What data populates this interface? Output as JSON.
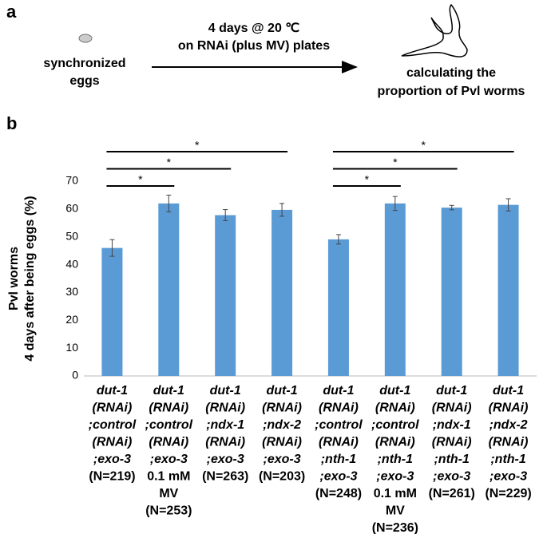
{
  "panel_a": {
    "label": "a",
    "start_text": [
      "synchronized",
      "eggs"
    ],
    "arrow_text": [
      "4 days @ 20 ℃",
      "on RNAi (plus MV) plates"
    ],
    "end_text": [
      "calculating the",
      "proportion of Pvl worms"
    ]
  },
  "panel_b": {
    "label": "b"
  },
  "chart_data": {
    "type": "bar",
    "y_label": [
      "Pvl worms",
      "4 days after being eggs (%)"
    ],
    "categories": [
      {
        "genotype": [
          "dut-1",
          "(RNAi)",
          ";control",
          "(RNAi)",
          ";exo-3"
        ],
        "n": "(N=219)"
      },
      {
        "genotype": [
          "dut-1",
          "(RNAi)",
          ";control",
          "(RNAi)",
          ";exo-3"
        ],
        "treatment": [
          "0.1 mM",
          "MV"
        ],
        "n": "(N=253)"
      },
      {
        "genotype": [
          "dut-1",
          "(RNAi)",
          ";ndx-1",
          "(RNAi)",
          ";exo-3"
        ],
        "n": "(N=263)"
      },
      {
        "genotype": [
          "dut-1",
          "(RNAi)",
          ";ndx-2",
          "(RNAi)",
          ";exo-3"
        ],
        "n": "(N=203)"
      },
      {
        "genotype": [
          "dut-1",
          "(RNAi)",
          ";control",
          "(RNAi)",
          ";nth-1",
          ";exo-3"
        ],
        "n": "(N=248)"
      },
      {
        "genotype": [
          "dut-1",
          "(RNAi)",
          ";control",
          "(RNAi)",
          ";nth-1",
          ";exo-3"
        ],
        "treatment": [
          "0.1 mM",
          "MV"
        ],
        "n": "(N=236)"
      },
      {
        "genotype": [
          "dut-1",
          "(RNAi)",
          ";ndx-1",
          "(RNAi)",
          ";nth-1",
          ";exo-3"
        ],
        "n": "(N=261)"
      },
      {
        "genotype": [
          "dut-1",
          "(RNAi)",
          ";ndx-2",
          "(RNAi)",
          ";nth-1",
          ";exo-3"
        ],
        "n": "(N=229)"
      }
    ],
    "values": [
      46,
      62,
      57.8,
      59.7,
      49.1,
      62,
      60.5,
      61.5
    ],
    "errors": [
      3,
      3,
      2,
      2.3,
      1.7,
      2.5,
      0.8,
      2.2
    ],
    "color": "#5b9bd5",
    "ylim": [
      0,
      70
    ],
    "yticks": [
      0,
      10,
      20,
      30,
      40,
      50,
      60,
      70
    ],
    "significance": [
      {
        "from": 0,
        "to": 3,
        "label": "*"
      },
      {
        "from": 0,
        "to": 2,
        "label": "*"
      },
      {
        "from": 0,
        "to": 1,
        "label": "*"
      },
      {
        "from": 4,
        "to": 7,
        "label": "*"
      },
      {
        "from": 4,
        "to": 6,
        "label": "*"
      },
      {
        "from": 4,
        "to": 5,
        "label": "*"
      }
    ]
  }
}
